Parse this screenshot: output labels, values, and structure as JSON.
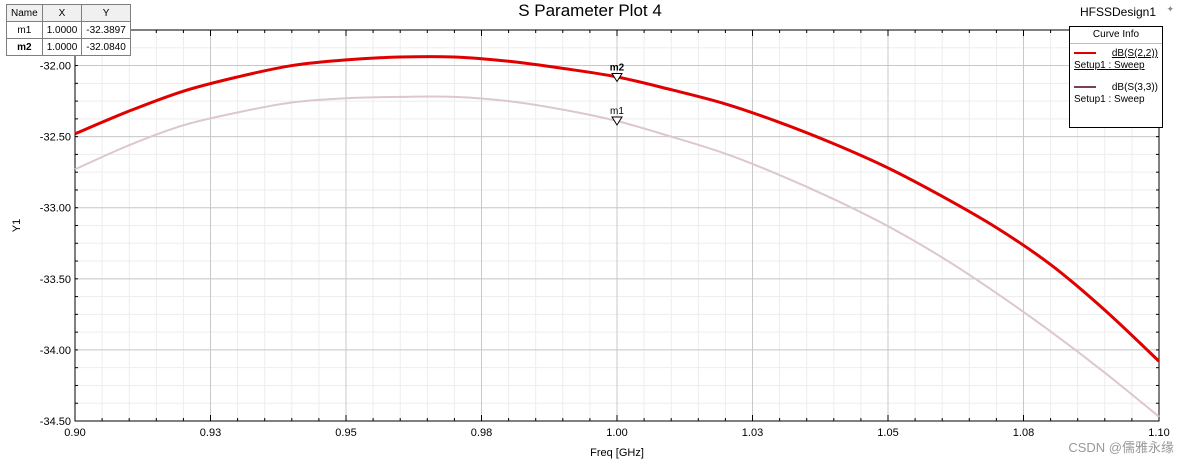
{
  "title": "S Parameter Plot 4",
  "design_name": "HFSSDesign1",
  "corner_glyph": "✦",
  "marker_table": {
    "headers": [
      "Name",
      "X",
      "Y"
    ],
    "rows": [
      {
        "name": "m1",
        "x": "1.0000",
        "y": "-32.3897",
        "bold": false
      },
      {
        "name": "m2",
        "x": "1.0000",
        "y": "-32.0840",
        "bold": true
      }
    ]
  },
  "legend": {
    "header": "Curve Info",
    "entries": [
      {
        "name": "dB(S(2,2))",
        "sub": "Setup1 : Sweep",
        "color": "#e00000",
        "selected": true
      },
      {
        "name": "dB(S(3,3))",
        "sub": "Setup1 : Sweep",
        "color": "#7a3f5a",
        "selected": false
      }
    ]
  },
  "watermark": "CSDN @儒雅永缘",
  "chart_data": {
    "type": "line",
    "title": "S Parameter Plot 4",
    "xlabel": "Freq [GHz]",
    "ylabel": "Y1",
    "xlim": [
      0.9,
      1.1
    ],
    "ylim": [
      -34.5,
      -31.75
    ],
    "x_ticks": [
      "0.90",
      "0.93",
      "0.95",
      "0.98",
      "1.00",
      "1.03",
      "1.05",
      "1.08",
      "1.10"
    ],
    "x_tick_values": [
      0.9,
      0.925,
      0.95,
      0.975,
      1.0,
      1.025,
      1.05,
      1.075,
      1.1
    ],
    "y_ticks": [
      "-32.00",
      "-32.50",
      "-33.00",
      "-33.50",
      "-34.00",
      "-34.50"
    ],
    "y_tick_values": [
      -32.0,
      -32.5,
      -33.0,
      -33.5,
      -34.0,
      -34.5
    ],
    "grid": true,
    "legend_position": "top-right",
    "series": [
      {
        "name": "dB(S(2,2))",
        "color": "#e00000",
        "x": [
          0.9,
          0.91,
          0.92,
          0.93,
          0.94,
          0.95,
          0.96,
          0.97,
          0.98,
          0.99,
          1.0,
          1.01,
          1.02,
          1.03,
          1.04,
          1.05,
          1.06,
          1.07,
          1.08,
          1.09,
          1.1
        ],
        "y": [
          -32.48,
          -32.32,
          -32.18,
          -32.08,
          -32.0,
          -31.96,
          -31.94,
          -31.94,
          -31.97,
          -32.02,
          -32.08,
          -32.17,
          -32.27,
          -32.4,
          -32.55,
          -32.72,
          -32.92,
          -33.14,
          -33.4,
          -33.72,
          -34.08
        ]
      },
      {
        "name": "dB(S(3,3))",
        "color": "#dcc8cc",
        "x": [
          0.9,
          0.91,
          0.92,
          0.93,
          0.94,
          0.95,
          0.96,
          0.97,
          0.98,
          0.99,
          1.0,
          1.01,
          1.02,
          1.03,
          1.04,
          1.05,
          1.06,
          1.07,
          1.08,
          1.09,
          1.1
        ],
        "y": [
          -32.73,
          -32.56,
          -32.42,
          -32.33,
          -32.26,
          -32.23,
          -32.22,
          -32.22,
          -32.25,
          -32.31,
          -32.39,
          -32.5,
          -32.62,
          -32.77,
          -32.94,
          -33.13,
          -33.35,
          -33.6,
          -33.87,
          -34.16,
          -34.47
        ]
      }
    ],
    "markers": [
      {
        "name": "m2",
        "x": 1.0,
        "y": -32.084
      },
      {
        "name": "m1",
        "x": 1.0,
        "y": -32.3897
      }
    ]
  }
}
